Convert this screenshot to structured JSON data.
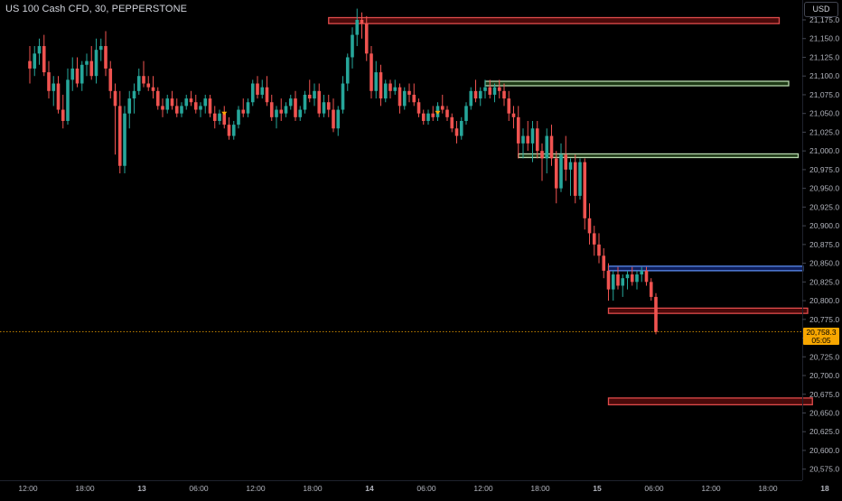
{
  "header": {
    "symbol_title": "US 100 Cash CFD, 30, PEPPERSTONE",
    "currency_label": "USD"
  },
  "current_price": {
    "value": 20758.3,
    "label": "20,758.3",
    "countdown": "05:05"
  },
  "colors": {
    "background": "#000000",
    "up_candle": "#26a69a",
    "down_candle": "#ef5350",
    "axis_text": "#b2b5be",
    "price_line": "#f7a600",
    "zone_red_fill": "#4a0a0a",
    "zone_red_border": "#e04b4b",
    "zone_green_fill": "#1e3a16",
    "zone_green_border": "#b7d8ae",
    "zone_blue_fill": "#0f1f5c",
    "zone_blue_border": "#5b8cf0"
  },
  "chart_data": {
    "type": "candlestick",
    "symbol": "US 100 Cash CFD",
    "timeframe": "30",
    "source": "PEPPERSTONE",
    "y_axis": {
      "range": [
        20555,
        21185
      ],
      "ticks": [
        "21,175.0",
        "21,150.0",
        "21,125.0",
        "21,100.0",
        "21,075.0",
        "21,050.0",
        "21,025.0",
        "21,000.0",
        "20,975.0",
        "20,950.0",
        "20,925.0",
        "20,900.0",
        "20,875.0",
        "20,850.0",
        "20,825.0",
        "20,800.0",
        "20,775.0",
        "20,750.0",
        "20,725.0",
        "20,700.0",
        "20,675.0",
        "20,650.0",
        "20,625.0",
        "20,600.0",
        "20,575.0"
      ],
      "tick_values": [
        21175,
        21150,
        21125,
        21100,
        21075,
        21050,
        21025,
        21000,
        20975,
        20950,
        20925,
        20900,
        20875,
        20850,
        20825,
        20800,
        20775,
        20750,
        20725,
        20700,
        20675,
        20650,
        20625,
        20600,
        20575
      ]
    },
    "x_axis": {
      "labels": [
        "12:00",
        "18:00",
        "13",
        "06:00",
        "12:00",
        "18:00",
        "14",
        "06:00",
        "12:00",
        "18:00",
        "15",
        "06:00",
        "12:00",
        "18:00",
        "18"
      ],
      "label_index": [
        0,
        12,
        24,
        36,
        48,
        60,
        72,
        84,
        96,
        108,
        120,
        132,
        144,
        156,
        168
      ]
    },
    "zones": [
      {
        "name": "resistance-zone-top",
        "kind": "red",
        "start_index": 63,
        "end_index": 158,
        "top": 21178,
        "bottom": 21170
      },
      {
        "name": "supply-zone-upper",
        "kind": "green",
        "start_index": 96,
        "end_index": 160,
        "top": 21093,
        "bottom": 21087
      },
      {
        "name": "supply-zone-lower",
        "kind": "green",
        "start_index": 103,
        "end_index": 162,
        "top": 20996,
        "bottom": 20992
      },
      {
        "name": "blue-zone",
        "kind": "blue",
        "start_index": 122,
        "end_index": 163,
        "top": 20846,
        "bottom": 20840
      },
      {
        "name": "demand-zone-upper",
        "kind": "red",
        "start_index": 122,
        "end_index": 164,
        "top": 20790,
        "bottom": 20783
      },
      {
        "name": "demand-zone-lower",
        "kind": "red",
        "start_index": 122,
        "end_index": 165,
        "top": 20670,
        "bottom": 20661
      }
    ],
    "markers": [
      {
        "index": 41,
        "price": 21050
      },
      {
        "index": 86,
        "price": 21051
      }
    ],
    "candles": [
      [
        21120,
        21140,
        21090,
        21110
      ],
      [
        21110,
        21140,
        21100,
        21130
      ],
      [
        21130,
        21150,
        21115,
        21140
      ],
      [
        21140,
        21155,
        21100,
        21105
      ],
      [
        21105,
        21120,
        21070,
        21080
      ],
      [
        21080,
        21100,
        21060,
        21090
      ],
      [
        21090,
        21100,
        21050,
        21055
      ],
      [
        21055,
        21075,
        21030,
        21040
      ],
      [
        21040,
        21110,
        21035,
        21095
      ],
      [
        21095,
        21125,
        21080,
        21110
      ],
      [
        21110,
        21125,
        21085,
        21090
      ],
      [
        21090,
        21120,
        21080,
        21115
      ],
      [
        21115,
        21130,
        21100,
        21120
      ],
      [
        21120,
        21140,
        21095,
        21100
      ],
      [
        21100,
        21150,
        21090,
        21135
      ],
      [
        21135,
        21150,
        21120,
        21140
      ],
      [
        21140,
        21160,
        21100,
        21110
      ],
      [
        21110,
        21120,
        21070,
        21080
      ],
      [
        21080,
        21090,
        20995,
        21060
      ],
      [
        21060,
        21080,
        20970,
        20980
      ],
      [
        20980,
        21060,
        20970,
        21050
      ],
      [
        21050,
        21080,
        21030,
        21070
      ],
      [
        21070,
        21090,
        21050,
        21080
      ],
      [
        21080,
        21110,
        21075,
        21100
      ],
      [
        21100,
        21120,
        21085,
        21090
      ],
      [
        21090,
        21100,
        21080,
        21085
      ],
      [
        21085,
        21100,
        21070,
        21080
      ],
      [
        21080,
        21085,
        21055,
        21060
      ],
      [
        21060,
        21070,
        21045,
        21055
      ],
      [
        21055,
        21075,
        21050,
        21070
      ],
      [
        21070,
        21080,
        21055,
        21060
      ],
      [
        21060,
        21070,
        21045,
        21050
      ],
      [
        21050,
        21065,
        21045,
        21060
      ],
      [
        21060,
        21075,
        21055,
        21070
      ],
      [
        21070,
        21080,
        21060,
        21065
      ],
      [
        21065,
        21075,
        21050,
        21055
      ],
      [
        21055,
        21065,
        21045,
        21060
      ],
      [
        21060,
        21075,
        21050,
        21070
      ],
      [
        21070,
        21075,
        21045,
        21050
      ],
      [
        21050,
        21060,
        21030,
        21040
      ],
      [
        21040,
        21055,
        21035,
        21050
      ],
      [
        21050,
        21060,
        21030,
        21035
      ],
      [
        21035,
        21045,
        21015,
        21020
      ],
      [
        21020,
        21040,
        21015,
        21035
      ],
      [
        21035,
        21060,
        21030,
        21055
      ],
      [
        21055,
        21070,
        21045,
        21050
      ],
      [
        21050,
        21070,
        21045,
        21065
      ],
      [
        21065,
        21095,
        21060,
        21090
      ],
      [
        21090,
        21100,
        21070,
        21075
      ],
      [
        21075,
        21095,
        21070,
        21085
      ],
      [
        21085,
        21100,
        21060,
        21065
      ],
      [
        21065,
        21075,
        21040,
        21045
      ],
      [
        21045,
        21060,
        21030,
        21055
      ],
      [
        21055,
        21070,
        21040,
        21050
      ],
      [
        21050,
        21065,
        21045,
        21060
      ],
      [
        21060,
        21075,
        21055,
        21070
      ],
      [
        21070,
        21080,
        21040,
        21045
      ],
      [
        21045,
        21060,
        21040,
        21055
      ],
      [
        21055,
        21080,
        21050,
        21075
      ],
      [
        21075,
        21095,
        21065,
        21070
      ],
      [
        21070,
        21090,
        21060,
        21080
      ],
      [
        21080,
        21090,
        21045,
        21050
      ],
      [
        21050,
        21075,
        21045,
        21065
      ],
      [
        21065,
        21075,
        21045,
        21055
      ],
      [
        21055,
        21070,
        21025,
        21030
      ],
      [
        21030,
        21060,
        21020,
        21055
      ],
      [
        21055,
        21100,
        21050,
        21090
      ],
      [
        21090,
        21130,
        21080,
        21125
      ],
      [
        21125,
        21165,
        21110,
        21155
      ],
      [
        21155,
        21190,
        21140,
        21175
      ],
      [
        21175,
        21185,
        21150,
        21170
      ],
      [
        21170,
        21180,
        21120,
        21130
      ],
      [
        21130,
        21140,
        21070,
        21080
      ],
      [
        21080,
        21120,
        21070,
        21105
      ],
      [
        21105,
        21115,
        21060,
        21070
      ],
      [
        21070,
        21095,
        21065,
        21090
      ],
      [
        21090,
        21095,
        21070,
        21080
      ],
      [
        21080,
        21095,
        21075,
        21085
      ],
      [
        21085,
        21090,
        21050,
        21060
      ],
      [
        21060,
        21085,
        21055,
        21080
      ],
      [
        21080,
        21090,
        21065,
        21075
      ],
      [
        21075,
        21090,
        21060,
        21065
      ],
      [
        21065,
        21070,
        21045,
        21050
      ],
      [
        21050,
        21055,
        21035,
        21040
      ],
      [
        21040,
        21055,
        21035,
        21050
      ],
      [
        21050,
        21060,
        21040,
        21045
      ],
      [
        21045,
        21065,
        21040,
        21060
      ],
      [
        21060,
        21075,
        21050,
        21055
      ],
      [
        21055,
        21060,
        21040,
        21045
      ],
      [
        21045,
        21050,
        21025,
        21030
      ],
      [
        21030,
        21040,
        21010,
        21020
      ],
      [
        21020,
        21045,
        21015,
        21040
      ],
      [
        21040,
        21065,
        21035,
        21060
      ],
      [
        21060,
        21085,
        21055,
        21080
      ],
      [
        21080,
        21095,
        21065,
        21070
      ],
      [
        21070,
        21085,
        21060,
        21080
      ],
      [
        21080,
        21095,
        21070,
        21085
      ],
      [
        21085,
        21095,
        21070,
        21075
      ],
      [
        21075,
        21090,
        21065,
        21085
      ],
      [
        21085,
        21095,
        21070,
        21080
      ],
      [
        21080,
        21090,
        21060,
        21070
      ],
      [
        21070,
        21080,
        21040,
        21050
      ],
      [
        21050,
        21060,
        21030,
        21045
      ],
      [
        21045,
        21060,
        20990,
        21010
      ],
      [
        21010,
        21030,
        20990,
        21020
      ],
      [
        21020,
        21040,
        21000,
        21010
      ],
      [
        21010,
        21040,
        20985,
        21030
      ],
      [
        21030,
        21040,
        20990,
        21000
      ],
      [
        21000,
        21010,
        20960,
        20990
      ],
      [
        20990,
        21030,
        20970,
        21020
      ],
      [
        21020,
        21035,
        20980,
        20990
      ],
      [
        20990,
        21000,
        20930,
        20950
      ],
      [
        20950,
        21010,
        20945,
        20995
      ],
      [
        20995,
        21020,
        20960,
        20975
      ],
      [
        20975,
        20990,
        20940,
        20985
      ],
      [
        20985,
        20995,
        20930,
        20940
      ],
      [
        20940,
        20990,
        20935,
        20985
      ],
      [
        20985,
        20990,
        20895,
        20910
      ],
      [
        20910,
        20930,
        20875,
        20890
      ],
      [
        20890,
        20900,
        20860,
        20875
      ],
      [
        20875,
        20890,
        20850,
        20860
      ],
      [
        20860,
        20870,
        20830,
        20840
      ],
      [
        20840,
        20850,
        20800,
        20815
      ],
      [
        20815,
        20840,
        20800,
        20835
      ],
      [
        20835,
        20845,
        20815,
        20820
      ],
      [
        20820,
        20835,
        20805,
        20830
      ],
      [
        20830,
        20840,
        20815,
        20835
      ],
      [
        20835,
        20845,
        20820,
        20825
      ],
      [
        20825,
        20840,
        20815,
        20835
      ],
      [
        20835,
        20845,
        20825,
        20840
      ],
      [
        20840,
        20845,
        20820,
        20825
      ],
      [
        20825,
        20830,
        20800,
        20805
      ],
      [
        20805,
        20810,
        20755,
        20758.3
      ]
    ]
  }
}
